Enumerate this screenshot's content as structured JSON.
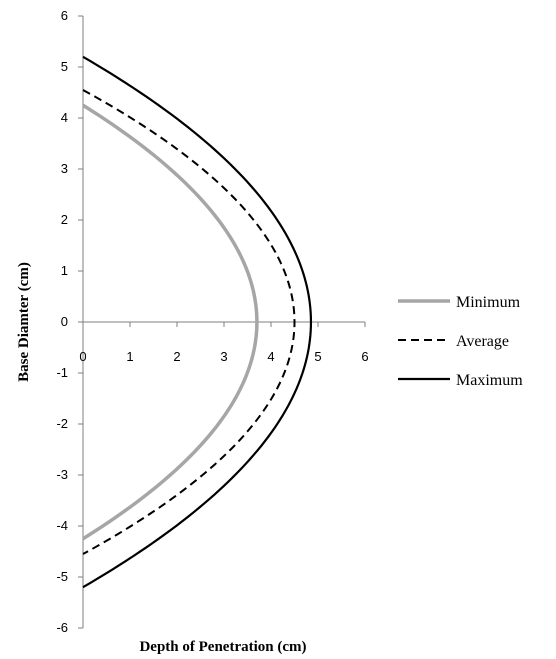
{
  "chart_data": {
    "type": "line",
    "xlabel": "Depth of Penetration (cm)",
    "ylabel": "Base Diamter (cm)",
    "xlim": [
      0,
      6
    ],
    "ylim": [
      -6,
      6
    ],
    "x_ticks": [
      "0",
      "1",
      "2",
      "3",
      "4",
      "5",
      "6"
    ],
    "y_ticks": [
      "6",
      "5",
      "4",
      "3",
      "2",
      "1",
      "0",
      "-1",
      "-2",
      "-3",
      "-4",
      "-5",
      "-6"
    ],
    "grid": false,
    "legend_position": "right",
    "series": [
      {
        "name": "Minimum",
        "depth": 3.7,
        "radius": 4.25,
        "color": "#a6a6a6",
        "style": "solid"
      },
      {
        "name": "Average",
        "depth": 4.5,
        "radius": 4.55,
        "color": "#000000",
        "style": "dashed"
      },
      {
        "name": "Maximum",
        "depth": 4.85,
        "radius": 5.2,
        "color": "#000000",
        "style": "solid"
      }
    ]
  }
}
